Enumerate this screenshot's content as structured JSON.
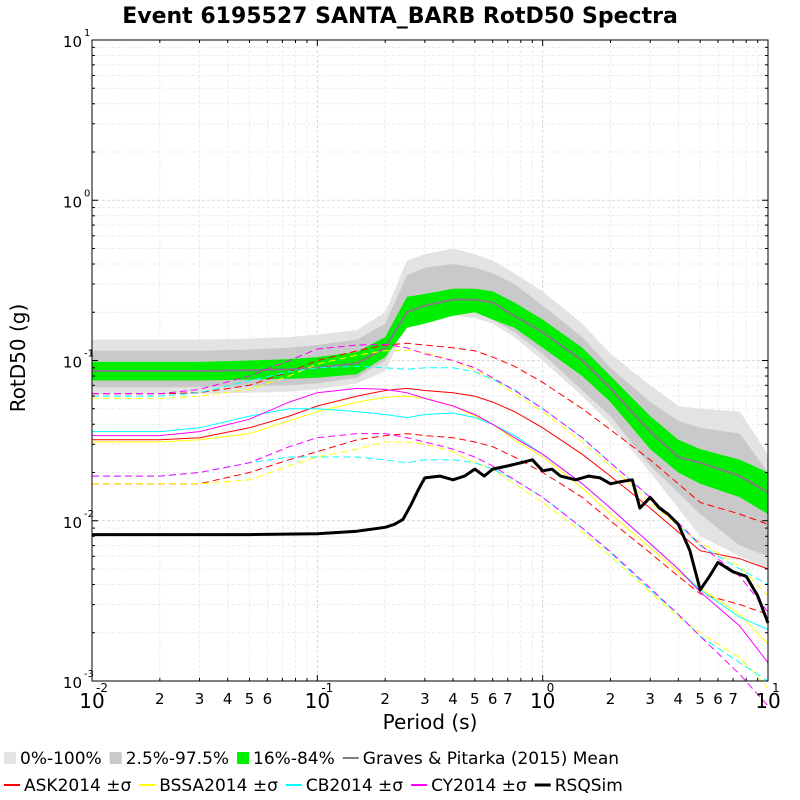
{
  "chart_data": {
    "type": "line",
    "title": "Event 6195527 SANTA_BARB RotD50 Spectra",
    "xlabel": "Period (s)",
    "ylabel": "RotD50 (g)",
    "xscale": "log",
    "yscale": "log",
    "xlim": [
      0.01,
      10
    ],
    "ylim": [
      0.001,
      10
    ],
    "grid": true,
    "legend_position": "bottom",
    "x_major_ticks": [
      {
        "base": "10",
        "exp": "-2",
        "value": 0.01
      },
      {
        "base": "10",
        "exp": "-1",
        "value": 0.1
      },
      {
        "base": "10",
        "exp": "0",
        "value": 1
      },
      {
        "base": "10",
        "exp": "1",
        "value": 10
      }
    ],
    "y_major_ticks": [
      {
        "base": "10",
        "exp": "-3",
        "value": 0.001
      },
      {
        "base": "10",
        "exp": "-2",
        "value": 0.01
      },
      {
        "base": "10",
        "exp": "-1",
        "value": 0.1
      },
      {
        "base": "10",
        "exp": "0",
        "value": 1
      },
      {
        "base": "10",
        "exp": "1",
        "value": 10
      }
    ],
    "x_minor_tick_labels": [
      "2",
      "3",
      "4",
      "5",
      "6",
      "2",
      "3",
      "4",
      "5",
      "6",
      "7",
      "2",
      "3",
      "4",
      "5",
      "6",
      "7"
    ],
    "x_minor_tick_values": [
      0.02,
      0.03,
      0.04,
      0.05,
      0.06,
      0.2,
      0.3,
      0.4,
      0.5,
      0.6,
      0.7,
      2,
      3,
      4,
      5,
      6,
      7
    ],
    "periods": [
      0.01,
      0.02,
      0.03,
      0.05,
      0.075,
      0.1,
      0.15,
      0.2,
      0.25,
      0.3,
      0.4,
      0.5,
      0.6,
      0.75,
      1,
      1.5,
      2,
      3,
      4,
      5,
      7.5,
      10
    ],
    "bands": [
      {
        "name": "0%-100%",
        "color": "#e3e3e3",
        "lower": [
          0.062,
          0.062,
          0.062,
          0.063,
          0.064,
          0.066,
          0.072,
          0.086,
          0.165,
          0.18,
          0.19,
          0.185,
          0.17,
          0.14,
          0.1,
          0.06,
          0.04,
          0.02,
          0.012,
          0.008,
          0.006,
          0.005
        ],
        "upper": [
          0.135,
          0.135,
          0.135,
          0.137,
          0.14,
          0.145,
          0.155,
          0.2,
          0.42,
          0.46,
          0.5,
          0.46,
          0.42,
          0.35,
          0.27,
          0.17,
          0.11,
          0.07,
          0.052,
          0.05,
          0.048,
          0.026
        ]
      },
      {
        "name": "2.5%-97.5%",
        "color": "#c9c9c9",
        "lower": [
          0.068,
          0.068,
          0.068,
          0.069,
          0.07,
          0.072,
          0.078,
          0.1,
          0.18,
          0.19,
          0.2,
          0.2,
          0.18,
          0.15,
          0.11,
          0.065,
          0.045,
          0.022,
          0.015,
          0.011,
          0.007,
          0.006
        ],
        "upper": [
          0.115,
          0.115,
          0.115,
          0.117,
          0.12,
          0.125,
          0.135,
          0.17,
          0.34,
          0.38,
          0.4,
          0.38,
          0.35,
          0.3,
          0.22,
          0.14,
          0.09,
          0.055,
          0.042,
          0.038,
          0.035,
          0.02
        ]
      },
      {
        "name": "16%-84%",
        "color": "#00ee00",
        "lower": [
          0.075,
          0.075,
          0.075,
          0.076,
          0.077,
          0.078,
          0.082,
          0.105,
          0.16,
          0.17,
          0.19,
          0.2,
          0.18,
          0.16,
          0.12,
          0.08,
          0.055,
          0.028,
          0.02,
          0.017,
          0.014,
          0.011
        ],
        "upper": [
          0.098,
          0.098,
          0.098,
          0.1,
          0.102,
          0.105,
          0.113,
          0.14,
          0.25,
          0.26,
          0.28,
          0.28,
          0.27,
          0.23,
          0.18,
          0.12,
          0.08,
          0.045,
          0.032,
          0.028,
          0.024,
          0.02
        ]
      }
    ],
    "series": [
      {
        "name": "Graves & Pitarka (2015) Mean",
        "color": "#7f7f7f",
        "width": 2,
        "dash": "",
        "values": [
          0.086,
          0.086,
          0.086,
          0.087,
          0.088,
          0.09,
          0.096,
          0.12,
          0.2,
          0.22,
          0.24,
          0.24,
          0.23,
          0.19,
          0.15,
          0.1,
          0.067,
          0.036,
          0.025,
          0.023,
          0.019,
          0.015
        ]
      },
      {
        "name": "ASK2014",
        "color": "#ff0000",
        "width": 1,
        "dash": "",
        "values": [
          0.032,
          0.032,
          0.033,
          0.038,
          0.045,
          0.052,
          0.06,
          0.065,
          0.067,
          0.065,
          0.063,
          0.06,
          0.055,
          0.048,
          0.038,
          0.026,
          0.019,
          0.012,
          0.0085,
          0.0065,
          0.0058,
          0.005
        ]
      },
      {
        "name": "ASK2014 +σ",
        "color": "#ff0000",
        "width": 1,
        "dash": "7,4",
        "values": [
          0.062,
          0.062,
          0.063,
          0.07,
          0.085,
          0.1,
          0.115,
          0.125,
          0.128,
          0.125,
          0.12,
          0.115,
          0.105,
          0.092,
          0.073,
          0.05,
          0.037,
          0.024,
          0.017,
          0.013,
          0.011,
          0.0095
        ]
      },
      {
        "name": "ASK2014 -σ",
        "color": "#ff0000",
        "width": 1,
        "dash": "7,4",
        "values": [
          0.017,
          0.017,
          0.017,
          0.02,
          0.024,
          0.027,
          0.032,
          0.034,
          0.035,
          0.034,
          0.033,
          0.031,
          0.029,
          0.025,
          0.02,
          0.014,
          0.01,
          0.0063,
          0.0045,
          0.0035,
          0.003,
          0.0026
        ]
      },
      {
        "name": "BSSA2014",
        "color": "#ffff00",
        "width": 1,
        "dash": "",
        "values": [
          0.031,
          0.031,
          0.032,
          0.035,
          0.042,
          0.048,
          0.055,
          0.059,
          0.06,
          0.058,
          0.052,
          0.045,
          0.04,
          0.032,
          0.025,
          0.016,
          0.011,
          0.0068,
          0.0048,
          0.0038,
          0.0026,
          0.0017
        ]
      },
      {
        "name": "BSSA2014 +σ",
        "color": "#ffff00",
        "width": 1,
        "dash": "7,4",
        "values": [
          0.058,
          0.058,
          0.06,
          0.066,
          0.08,
          0.095,
          0.108,
          0.115,
          0.116,
          0.112,
          0.1,
          0.087,
          0.077,
          0.062,
          0.048,
          0.031,
          0.022,
          0.013,
          0.0093,
          0.0073,
          0.0052,
          0.0034
        ]
      },
      {
        "name": "BSSA2014 -σ",
        "color": "#ffff00",
        "width": 1,
        "dash": "7,4",
        "values": [
          0.017,
          0.017,
          0.017,
          0.018,
          0.022,
          0.025,
          0.028,
          0.031,
          0.031,
          0.03,
          0.027,
          0.023,
          0.021,
          0.017,
          0.013,
          0.0085,
          0.006,
          0.0036,
          0.0025,
          0.002,
          0.0014,
          0.0009
        ]
      },
      {
        "name": "CB2014",
        "color": "#00ffff",
        "width": 1,
        "dash": "",
        "values": [
          0.036,
          0.036,
          0.038,
          0.045,
          0.05,
          0.05,
          0.048,
          0.046,
          0.044,
          0.046,
          0.047,
          0.044,
          0.04,
          0.034,
          0.026,
          0.017,
          0.012,
          0.0072,
          0.005,
          0.0037,
          0.0025,
          0.0021
        ]
      },
      {
        "name": "CB2014 +σ",
        "color": "#00ffff",
        "width": 1,
        "dash": "7,4",
        "values": [
          0.06,
          0.06,
          0.063,
          0.075,
          0.085,
          0.09,
          0.092,
          0.09,
          0.088,
          0.09,
          0.09,
          0.085,
          0.076,
          0.066,
          0.05,
          0.033,
          0.023,
          0.014,
          0.0095,
          0.007,
          0.005,
          0.004
        ]
      },
      {
        "name": "CB2014 -σ",
        "color": "#00ffff",
        "width": 1,
        "dash": "7,4",
        "values": [
          0.019,
          0.019,
          0.02,
          0.023,
          0.025,
          0.025,
          0.025,
          0.024,
          0.023,
          0.024,
          0.024,
          0.023,
          0.021,
          0.018,
          0.014,
          0.009,
          0.0063,
          0.0037,
          0.0026,
          0.0019,
          0.0013,
          0.001
        ]
      },
      {
        "name": "CY2014",
        "color": "#ff00ff",
        "width": 1,
        "dash": "",
        "values": [
          0.034,
          0.034,
          0.036,
          0.043,
          0.055,
          0.063,
          0.067,
          0.066,
          0.063,
          0.058,
          0.052,
          0.046,
          0.04,
          0.033,
          0.026,
          0.017,
          0.012,
          0.0072,
          0.005,
          0.0036,
          0.0022,
          0.0013
        ]
      },
      {
        "name": "CY2014 +σ",
        "color": "#ff00ff",
        "width": 1,
        "dash": "7,4",
        "values": [
          0.062,
          0.062,
          0.066,
          0.08,
          0.1,
          0.118,
          0.125,
          0.126,
          0.12,
          0.11,
          0.1,
          0.09,
          0.078,
          0.065,
          0.05,
          0.033,
          0.023,
          0.014,
          0.0097,
          0.0071,
          0.0045,
          0.0027
        ]
      },
      {
        "name": "CY2014 -σ",
        "color": "#ff00ff",
        "width": 1,
        "dash": "7,4",
        "values": [
          0.019,
          0.019,
          0.02,
          0.023,
          0.029,
          0.033,
          0.035,
          0.035,
          0.033,
          0.031,
          0.028,
          0.025,
          0.022,
          0.018,
          0.014,
          0.009,
          0.0064,
          0.0038,
          0.0026,
          0.0019,
          0.0011,
          0.0007
        ]
      }
    ],
    "rsqsim": {
      "name": "RSQSim",
      "color": "#000000",
      "width": 3,
      "x": [
        0.01,
        0.02,
        0.05,
        0.1,
        0.15,
        0.2,
        0.22,
        0.24,
        0.26,
        0.28,
        0.3,
        0.35,
        0.4,
        0.45,
        0.5,
        0.55,
        0.6,
        0.7,
        0.8,
        0.9,
        1.0,
        1.1,
        1.2,
        1.4,
        1.6,
        1.8,
        2.0,
        2.2,
        2.5,
        2.7,
        3.0,
        3.3,
        3.6,
        4.0,
        4.5,
        5.0,
        5.5,
        6.0,
        7.0,
        8.0,
        9.0,
        10.0
      ],
      "y": [
        0.0082,
        0.0082,
        0.0082,
        0.0083,
        0.0086,
        0.0091,
        0.0095,
        0.0102,
        0.0125,
        0.0155,
        0.0185,
        0.019,
        0.018,
        0.019,
        0.021,
        0.019,
        0.021,
        0.022,
        0.023,
        0.024,
        0.0205,
        0.021,
        0.019,
        0.018,
        0.019,
        0.0185,
        0.017,
        0.0175,
        0.018,
        0.012,
        0.014,
        0.012,
        0.011,
        0.0095,
        0.0065,
        0.0037,
        0.0045,
        0.0055,
        0.0048,
        0.0045,
        0.0034,
        0.0023
      ]
    },
    "legend": {
      "row1": [
        {
          "label": "0%-100%",
          "kind": "box",
          "color": "#e3e3e3"
        },
        {
          "label": "2.5%-97.5%",
          "kind": "box",
          "color": "#c9c9c9"
        },
        {
          "label": "16%-84%",
          "kind": "box",
          "color": "#00ee00"
        },
        {
          "label": "Graves & Pitarka (2015) Mean",
          "kind": "line",
          "color": "#7f7f7f"
        }
      ],
      "row2": [
        {
          "label": "ASK2014 ±σ",
          "kind": "line",
          "color": "#ff0000"
        },
        {
          "label": "BSSA2014 ±σ",
          "kind": "line",
          "color": "#ffff00"
        },
        {
          "label": "CB2014 ±σ",
          "kind": "line",
          "color": "#00ffff"
        },
        {
          "label": "CY2014 ±σ",
          "kind": "line",
          "color": "#ff00ff"
        },
        {
          "label": "RSQSim",
          "kind": "thick-line",
          "color": "#000000"
        }
      ]
    }
  }
}
